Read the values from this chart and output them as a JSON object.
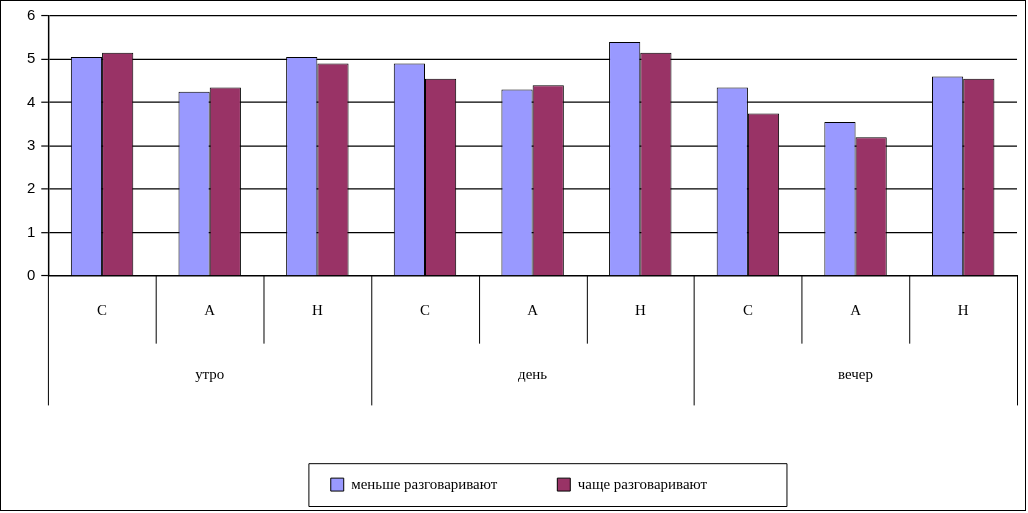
{
  "chart_data": {
    "type": "bar",
    "categories": [
      "С",
      "А",
      "Н",
      "С",
      "А",
      "Н",
      "С",
      "А",
      "Н"
    ],
    "annotations": [
      "утро",
      "день",
      "вечер"
    ],
    "series": [
      {
        "name": "меньше разговаривают",
        "color": "#9999ff",
        "values": [
          5.05,
          4.25,
          5.05,
          4.9,
          4.3,
          5.4,
          4.35,
          3.55,
          4.6
        ]
      },
      {
        "name": "чаще разговаривают",
        "color": "#993366",
        "values": [
          5.15,
          4.35,
          4.9,
          4.55,
          4.4,
          5.15,
          3.75,
          3.2,
          4.55
        ]
      }
    ],
    "ylim": [
      0,
      6
    ],
    "yticks": [
      0,
      1,
      2,
      3,
      4,
      5,
      6
    ],
    "grid": "y",
    "legend": "bottom"
  }
}
